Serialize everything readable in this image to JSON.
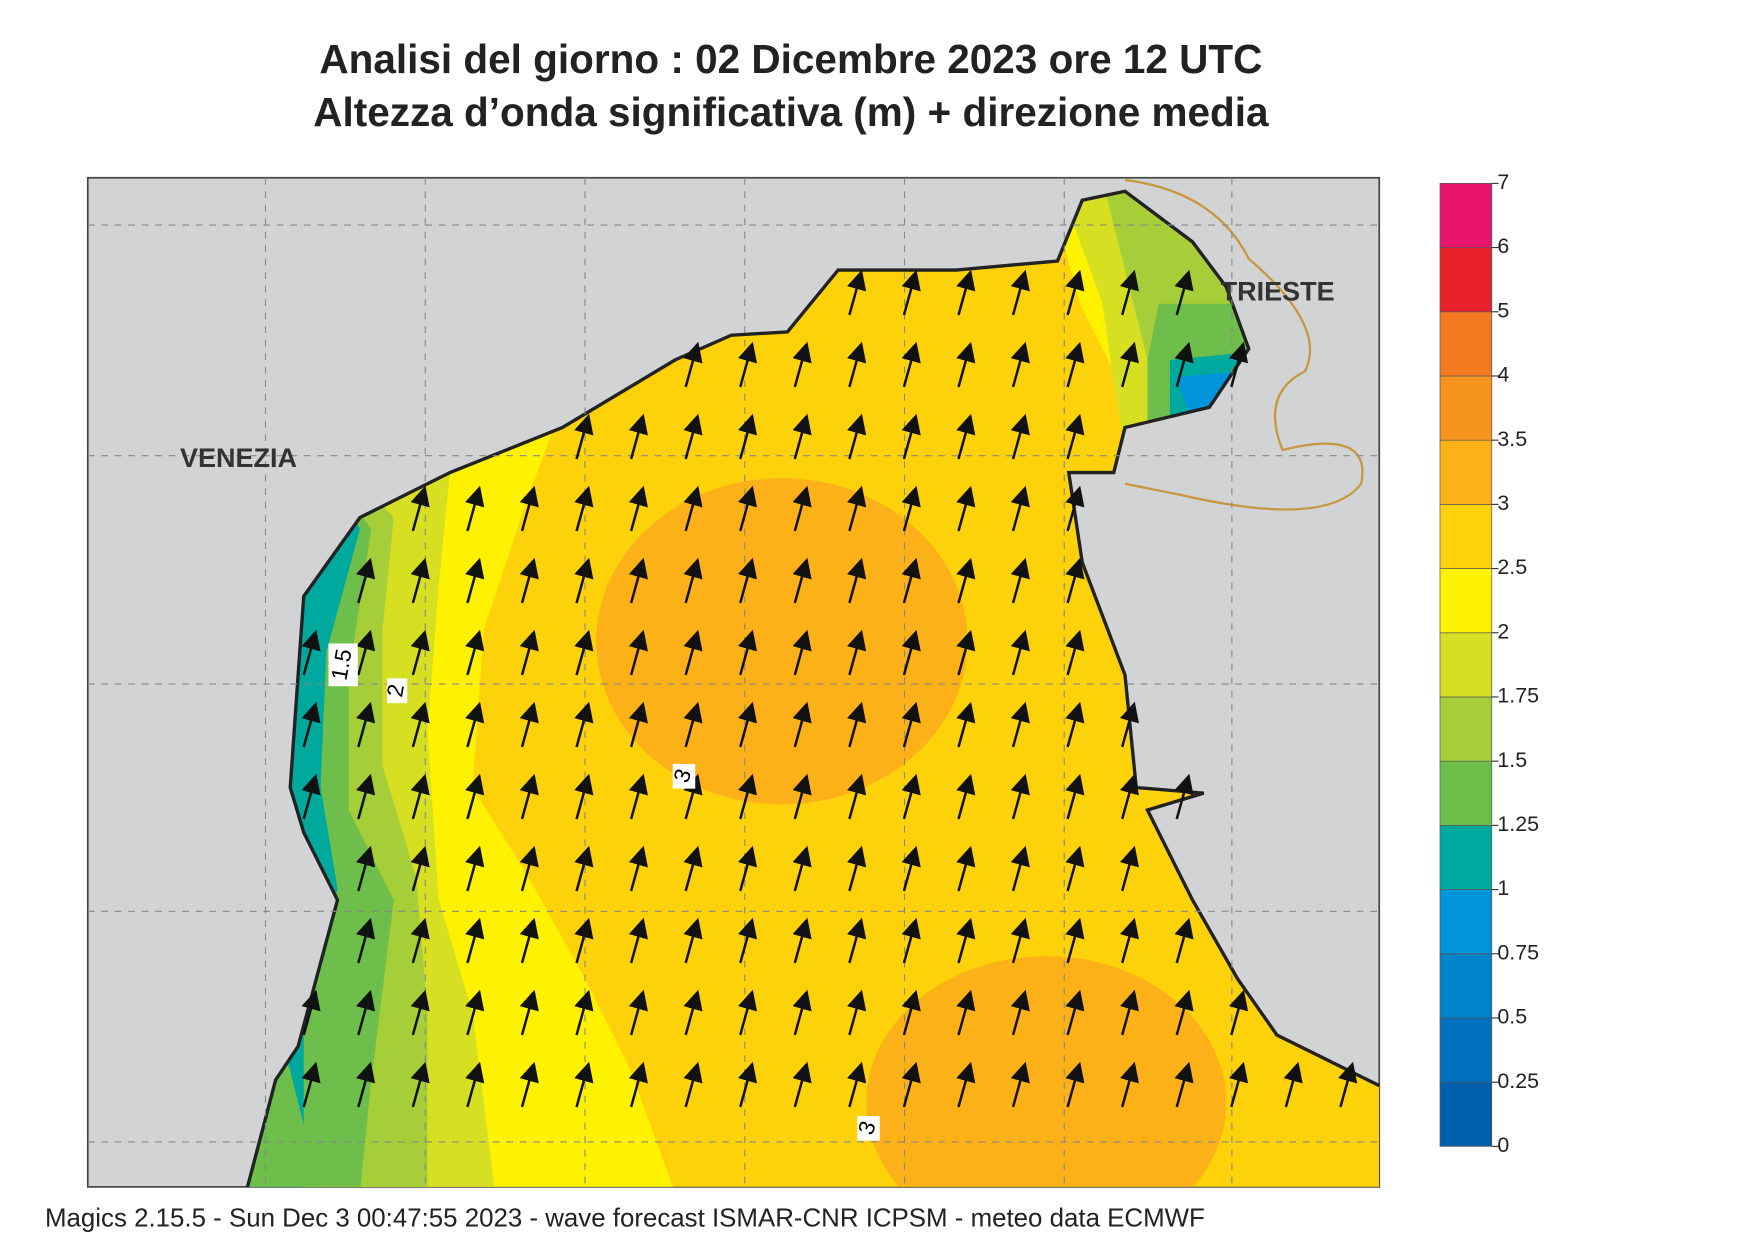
{
  "header": {
    "title": "Analisi del giorno :  02 Dicembre  2023   ore 12 UTC",
    "subtitle": "Altezza d’onda significativa (m) + direzione media"
  },
  "places": [
    "VENEZIA",
    "TRIESTE"
  ],
  "contour_labels": [
    "1.5",
    "2",
    "3",
    "3"
  ],
  "colorbar": {
    "ticks": [
      0,
      0.25,
      0.5,
      0.75,
      1,
      1.25,
      1.5,
      1.75,
      2,
      2.5,
      3,
      3.5,
      4,
      5,
      6,
      7
    ],
    "colors": [
      "#005fad",
      "#0071bc",
      "#0083c9",
      "#0095da",
      "#00a99d",
      "#6dbe4b",
      "#a6ce39",
      "#d7df23",
      "#fef200",
      "#fdd20a",
      "#fbb117",
      "#f7941d",
      "#f47a22",
      "#e8202a",
      "#e8136a"
    ]
  },
  "footer": "Magics 2.15.5 - Sun Dec  3 00:47:55 2023 - wave forecast  ISMAR-CNR  ICPSM - meteo data    ECMWF"
}
